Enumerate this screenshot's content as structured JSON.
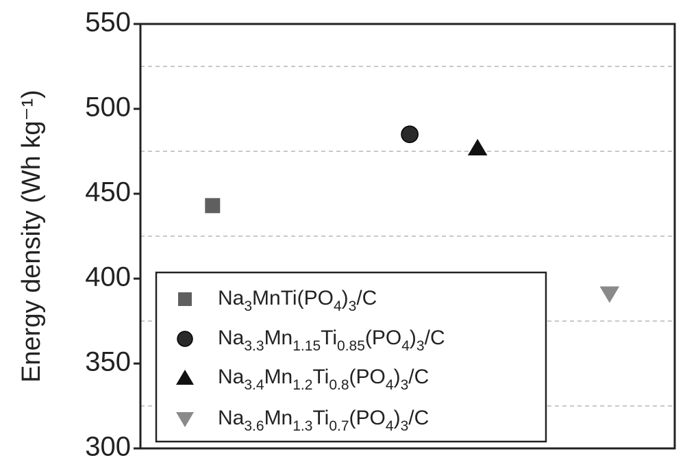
{
  "chart_data": {
    "type": "scatter",
    "y_label": "Energy density (Wh kg⁻¹)",
    "categories": [
      null,
      null,
      null,
      null
    ],
    "series": [
      {
        "name": "Na3MnTi(PO4)3/C",
        "color": "#5f5f5f",
        "marker": "square",
        "values": [
          443,
          null,
          null,
          null
        ]
      },
      {
        "name": "Na3.3Mn1.15Ti0.85(PO4)3/C",
        "color": "#2a2a2a",
        "marker": "circle",
        "values": [
          null,
          485,
          null,
          null
        ]
      },
      {
        "name": "Na3.4Mn1.2Ti0.8(PO4)3/C",
        "color": "#111111",
        "marker": "triangle-up",
        "values": [
          null,
          null,
          477,
          null
        ]
      },
      {
        "name": "Na3.6Mn1.3Ti0.7(PO4)3/C",
        "color": "#8a8a8a",
        "marker": "triangle-down",
        "values": [
          null,
          null,
          null,
          391
        ]
      }
    ],
    "ylim": [
      300,
      550
    ],
    "yticks": [
      300,
      350,
      400,
      450,
      500,
      550
    ],
    "minor_grid": [
      325,
      375,
      425,
      475,
      525
    ],
    "legend": "lower-left"
  }
}
